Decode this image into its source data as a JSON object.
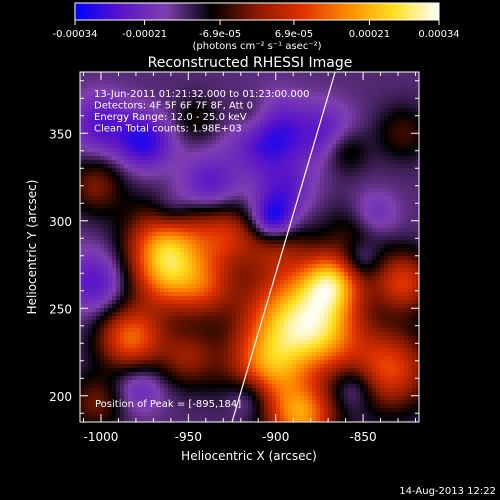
{
  "chart_data": {
    "type": "heatmap",
    "title": "Reconstructed RHESSI Image",
    "xlabel": "Heliocentric X (arcsec)",
    "ylabel": "Heliocentric Y (arcsec)",
    "xlim": [
      -1012,
      -818
    ],
    "ylim": [
      185,
      385
    ],
    "x_ticks": [
      "-1000",
      "-950",
      "-900",
      "-850"
    ],
    "y_ticks": [
      "200",
      "250",
      "300",
      "350"
    ],
    "x_tick_values": [
      -1000,
      -950,
      -900,
      -850
    ],
    "y_tick_values": [
      200,
      250,
      300,
      350
    ],
    "colorbar": {
      "ticks": [
        "-0.00034",
        "-0.00021",
        "-6.9e-05",
        "6.9e-05",
        "0.00021",
        "0.00034"
      ],
      "tick_values": [
        -0.00034,
        -0.00021,
        -6.9e-05,
        6.9e-05,
        0.00021,
        0.00034
      ],
      "range": [
        -0.00034,
        0.00034
      ],
      "unit_label": "(photons cm⁻² s⁻¹ asec⁻²)",
      "colors": [
        "#0000ff",
        "#5a14c8",
        "#7f3fb0",
        "#000000",
        "#8a1a00",
        "#e03000",
        "#ff8a00",
        "#ffe020",
        "#ffffff"
      ]
    },
    "annotations": [
      "13-Jun-2011 01:21:32.000 to 01:23:00.000",
      "Detectors: 4F 5F 6F 7F 8F, Att 0",
      "Energy Range: 12.0 - 25.0 keV",
      "Clean     Total counts: 1.98E+03"
    ],
    "peak_label": "Position of Peak = [-895,184]",
    "peak": {
      "x": -895,
      "y": 184
    },
    "limb_line": {
      "x0": -925,
      "y0": 185,
      "x1": -866,
      "y1": 385
    },
    "grid": false,
    "sources": [
      {
        "x": -962,
        "y": 287,
        "amp": 0.0003,
        "sigma": 16
      },
      {
        "x": -983,
        "y": 233,
        "amp": 0.00027,
        "sigma": 13
      },
      {
        "x": -962,
        "y": 267,
        "amp": 0.0002,
        "sigma": 14
      },
      {
        "x": -940,
        "y": 262,
        "amp": 0.00016,
        "sigma": 12
      },
      {
        "x": -928,
        "y": 292,
        "amp": 0.00018,
        "sigma": 13
      },
      {
        "x": -900,
        "y": 287,
        "amp": 0.00013,
        "sigma": 12
      },
      {
        "x": -890,
        "y": 245,
        "amp": 0.00034,
        "sigma": 20
      },
      {
        "x": -905,
        "y": 215,
        "amp": 0.00025,
        "sigma": 16
      },
      {
        "x": -870,
        "y": 235,
        "amp": 0.00018,
        "sigma": 15
      },
      {
        "x": -868,
        "y": 265,
        "amp": 0.0003,
        "sigma": 12
      },
      {
        "x": -835,
        "y": 215,
        "amp": 0.00024,
        "sigma": 16
      },
      {
        "x": -827,
        "y": 265,
        "amp": 0.00022,
        "sigma": 12
      },
      {
        "x": -852,
        "y": 295,
        "amp": 0.00011,
        "sigma": 12
      },
      {
        "x": -950,
        "y": 222,
        "amp": 0.00014,
        "sigma": 12
      },
      {
        "x": -885,
        "y": 188,
        "amp": 0.0003,
        "sigma": 13
      },
      {
        "x": -1003,
        "y": 196,
        "amp": 0.00012,
        "sigma": 11
      },
      {
        "x": -1003,
        "y": 320,
        "amp": 0.00013,
        "sigma": 11
      },
      {
        "x": -975,
        "y": 345,
        "amp": -0.00016,
        "sigma": 11
      },
      {
        "x": -945,
        "y": 358,
        "amp": 7e-05,
        "sigma": 9
      },
      {
        "x": -905,
        "y": 350,
        "amp": -0.0002,
        "sigma": 14
      },
      {
        "x": -872,
        "y": 350,
        "amp": -0.0001,
        "sigma": 12
      },
      {
        "x": -912,
        "y": 358,
        "amp": 0.00012,
        "sigma": 10
      },
      {
        "x": -895,
        "y": 318,
        "amp": -0.0001,
        "sigma": 11
      },
      {
        "x": -902,
        "y": 300,
        "amp": -0.00022,
        "sigma": 9
      },
      {
        "x": -860,
        "y": 340,
        "amp": 9e-05,
        "sigma": 9
      },
      {
        "x": -845,
        "y": 302,
        "amp": -0.00012,
        "sigma": 10
      },
      {
        "x": -827,
        "y": 350,
        "amp": 9e-05,
        "sigma": 11
      },
      {
        "x": -1003,
        "y": 265,
        "amp": -0.00012,
        "sigma": 13
      },
      {
        "x": -1000,
        "y": 355,
        "amp": -0.00012,
        "sigma": 12
      },
      {
        "x": -938,
        "y": 320,
        "amp": -0.00012,
        "sigma": 12
      },
      {
        "x": -960,
        "y": 305,
        "amp": -0.0001,
        "sigma": 9
      },
      {
        "x": -915,
        "y": 200,
        "amp": -0.00012,
        "sigma": 9
      },
      {
        "x": -855,
        "y": 205,
        "amp": -0.0001,
        "sigma": 9
      },
      {
        "x": -852,
        "y": 278,
        "amp": -0.0001,
        "sigma": 8
      },
      {
        "x": -978,
        "y": 205,
        "amp": -9e-05,
        "sigma": 10
      }
    ]
  },
  "footer": {
    "date": "14-Aug-2013 12:22"
  }
}
